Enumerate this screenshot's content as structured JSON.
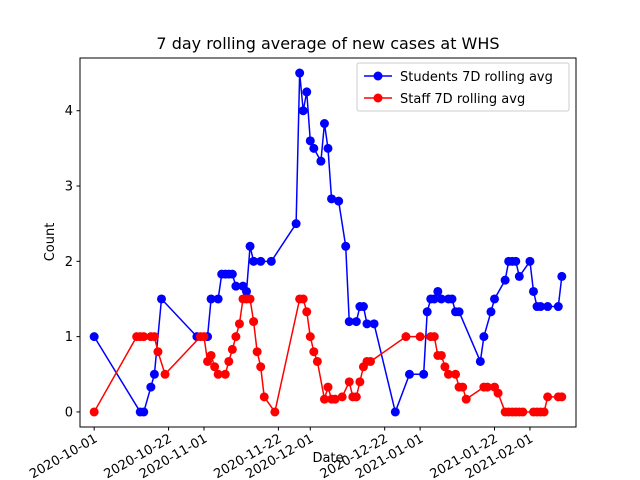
{
  "chart_data": {
    "type": "line",
    "title": "7 day rolling average of new cases at WHS",
    "xlabel": "Date",
    "ylabel": "Count",
    "xlim": [
      "2020-09-27",
      "2021-02-14"
    ],
    "ylim": [
      -0.2,
      4.7
    ],
    "x_ticks": [
      "2020-10-01",
      "2020-10-22",
      "2020-11-01",
      "2020-11-22",
      "2020-12-01",
      "2020-12-22",
      "2021-01-01",
      "2021-01-22",
      "2021-02-01"
    ],
    "y_ticks": [
      0,
      1,
      2,
      3,
      4
    ],
    "grid": false,
    "legend_position": "top-right",
    "series": [
      {
        "name": "Students 7D rolling avg",
        "color": "#0000ff",
        "points": [
          [
            "2020-10-01",
            1.0
          ],
          [
            "2020-10-14",
            0.0
          ],
          [
            "2020-10-15",
            0.0
          ],
          [
            "2020-10-17",
            0.33
          ],
          [
            "2020-10-18",
            0.5
          ],
          [
            "2020-10-20",
            1.5
          ],
          [
            "2020-10-30",
            1.0
          ],
          [
            "2020-11-02",
            1.0
          ],
          [
            "2020-11-03",
            1.5
          ],
          [
            "2020-11-05",
            1.5
          ],
          [
            "2020-11-06",
            1.83
          ],
          [
            "2020-11-07",
            1.83
          ],
          [
            "2020-11-08",
            1.83
          ],
          [
            "2020-11-09",
            1.83
          ],
          [
            "2020-11-10",
            1.67
          ],
          [
            "2020-11-12",
            1.67
          ],
          [
            "2020-11-13",
            1.6
          ],
          [
            "2020-11-14",
            2.2
          ],
          [
            "2020-11-15",
            2.0
          ],
          [
            "2020-11-17",
            2.0
          ],
          [
            "2020-11-20",
            2.0
          ],
          [
            "2020-11-27",
            2.5
          ],
          [
            "2020-11-28",
            4.5
          ],
          [
            "2020-11-29",
            4.0
          ],
          [
            "2020-11-30",
            4.25
          ],
          [
            "2020-12-01",
            3.6
          ],
          [
            "2020-12-02",
            3.5
          ],
          [
            "2020-12-04",
            3.33
          ],
          [
            "2020-12-05",
            3.83
          ],
          [
            "2020-12-06",
            3.5
          ],
          [
            "2020-12-07",
            2.83
          ],
          [
            "2020-12-09",
            2.8
          ],
          [
            "2020-12-11",
            2.2
          ],
          [
            "2020-12-12",
            1.2
          ],
          [
            "2020-12-14",
            1.2
          ],
          [
            "2020-12-15",
            1.4
          ],
          [
            "2020-12-16",
            1.4
          ],
          [
            "2020-12-17",
            1.17
          ],
          [
            "2020-12-19",
            1.17
          ],
          [
            "2020-12-25",
            0.0
          ],
          [
            "2020-12-29",
            0.5
          ],
          [
            "2021-01-02",
            0.5
          ],
          [
            "2021-01-03",
            1.33
          ],
          [
            "2021-01-04",
            1.5
          ],
          [
            "2021-01-05",
            1.5
          ],
          [
            "2021-01-06",
            1.6
          ],
          [
            "2021-01-07",
            1.5
          ],
          [
            "2021-01-09",
            1.5
          ],
          [
            "2021-01-10",
            1.5
          ],
          [
            "2021-01-11",
            1.33
          ],
          [
            "2021-01-12",
            1.33
          ],
          [
            "2021-01-18",
            0.67
          ],
          [
            "2021-01-19",
            1.0
          ],
          [
            "2021-01-21",
            1.33
          ],
          [
            "2021-01-22",
            1.5
          ],
          [
            "2021-01-25",
            1.75
          ],
          [
            "2021-01-26",
            2.0
          ],
          [
            "2021-01-27",
            2.0
          ],
          [
            "2021-01-28",
            2.0
          ],
          [
            "2021-01-29",
            1.8
          ],
          [
            "2021-02-01",
            2.0
          ],
          [
            "2021-02-02",
            1.6
          ],
          [
            "2021-02-03",
            1.4
          ],
          [
            "2021-02-04",
            1.4
          ],
          [
            "2021-02-06",
            1.4
          ],
          [
            "2021-02-09",
            1.4
          ],
          [
            "2021-02-10",
            1.8
          ]
        ]
      },
      {
        "name": "Staff 7D rolling avg",
        "color": "#ff0000",
        "points": [
          [
            "2020-10-01",
            0.0
          ],
          [
            "2020-10-13",
            1.0
          ],
          [
            "2020-10-14",
            1.0
          ],
          [
            "2020-10-15",
            1.0
          ],
          [
            "2020-10-17",
            1.0
          ],
          [
            "2020-10-18",
            1.0
          ],
          [
            "2020-10-19",
            0.8
          ],
          [
            "2020-10-21",
            0.5
          ],
          [
            "2020-10-31",
            1.0
          ],
          [
            "2020-11-01",
            1.0
          ],
          [
            "2020-11-02",
            0.67
          ],
          [
            "2020-11-03",
            0.75
          ],
          [
            "2020-11-04",
            0.6
          ],
          [
            "2020-11-05",
            0.5
          ],
          [
            "2020-11-07",
            0.5
          ],
          [
            "2020-11-08",
            0.67
          ],
          [
            "2020-11-09",
            0.83
          ],
          [
            "2020-11-10",
            1.0
          ],
          [
            "2020-11-11",
            1.17
          ],
          [
            "2020-11-12",
            1.5
          ],
          [
            "2020-11-13",
            1.5
          ],
          [
            "2020-11-14",
            1.5
          ],
          [
            "2020-11-15",
            1.2
          ],
          [
            "2020-11-16",
            0.8
          ],
          [
            "2020-11-17",
            0.6
          ],
          [
            "2020-11-18",
            0.2
          ],
          [
            "2020-11-21",
            0.0
          ],
          [
            "2020-11-28",
            1.5
          ],
          [
            "2020-11-29",
            1.5
          ],
          [
            "2020-11-30",
            1.33
          ],
          [
            "2020-12-01",
            1.0
          ],
          [
            "2020-12-02",
            0.8
          ],
          [
            "2020-12-03",
            0.67
          ],
          [
            "2020-12-05",
            0.17
          ],
          [
            "2020-12-06",
            0.33
          ],
          [
            "2020-12-07",
            0.17
          ],
          [
            "2020-12-08",
            0.17
          ],
          [
            "2020-12-10",
            0.2
          ],
          [
            "2020-12-12",
            0.4
          ],
          [
            "2020-12-13",
            0.2
          ],
          [
            "2020-12-14",
            0.2
          ],
          [
            "2020-12-15",
            0.4
          ],
          [
            "2020-12-16",
            0.6
          ],
          [
            "2020-12-17",
            0.67
          ],
          [
            "2020-12-18",
            0.67
          ],
          [
            "2020-12-28",
            1.0
          ],
          [
            "2021-01-01",
            1.0
          ],
          [
            "2021-01-04",
            1.0
          ],
          [
            "2021-01-05",
            1.0
          ],
          [
            "2021-01-06",
            0.75
          ],
          [
            "2021-01-07",
            0.75
          ],
          [
            "2021-01-08",
            0.6
          ],
          [
            "2021-01-09",
            0.5
          ],
          [
            "2021-01-11",
            0.5
          ],
          [
            "2021-01-12",
            0.33
          ],
          [
            "2021-01-13",
            0.33
          ],
          [
            "2021-01-14",
            0.17
          ],
          [
            "2021-01-19",
            0.33
          ],
          [
            "2021-01-20",
            0.33
          ],
          [
            "2021-01-22",
            0.33
          ],
          [
            "2021-01-23",
            0.25
          ],
          [
            "2021-01-25",
            0.0
          ],
          [
            "2021-01-26",
            0.0
          ],
          [
            "2021-01-27",
            0.0
          ],
          [
            "2021-01-28",
            0.0
          ],
          [
            "2021-01-29",
            0.0
          ],
          [
            "2021-01-30",
            0.0
          ],
          [
            "2021-02-02",
            0.0
          ],
          [
            "2021-02-03",
            0.0
          ],
          [
            "2021-02-04",
            0.0
          ],
          [
            "2021-02-05",
            0.0
          ],
          [
            "2021-02-06",
            0.2
          ],
          [
            "2021-02-09",
            0.2
          ],
          [
            "2021-02-10",
            0.2
          ]
        ]
      }
    ]
  }
}
